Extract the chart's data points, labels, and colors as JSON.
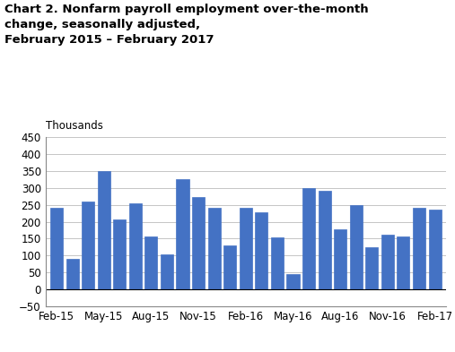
{
  "title_line1": "Chart 2. Nonfarm payroll employment over-the-month",
  "title_line2": "change, seasonally adjusted,",
  "title_line3": "February 2015 – February 2017",
  "ylabel": "Thousands",
  "bar_values": [
    240,
    90,
    260,
    350,
    207,
    255,
    157,
    103,
    325,
    272,
    240,
    130,
    240,
    228,
    155,
    45,
    300,
    292,
    178,
    250,
    125,
    163,
    157,
    240,
    237
  ],
  "bar_color": "#4472C4",
  "bar_edge_color": "#4472C4",
  "ylim": [
    -50,
    450
  ],
  "yticks": [
    -50,
    0,
    50,
    100,
    150,
    200,
    250,
    300,
    350,
    400,
    450
  ],
  "xtick_labels": [
    "Feb-15",
    "May-15",
    "Aug-15",
    "Nov-15",
    "Feb-16",
    "May-16",
    "Aug-16",
    "Nov-16",
    "Feb-17"
  ],
  "xtick_positions": [
    0,
    3,
    6,
    9,
    12,
    15,
    18,
    21,
    24
  ],
  "background_color": "#ffffff",
  "grid_color": "#bbbbbb",
  "title_fontsize": 9.5,
  "ylabel_fontsize": 8.5,
  "tick_fontsize": 8.5
}
